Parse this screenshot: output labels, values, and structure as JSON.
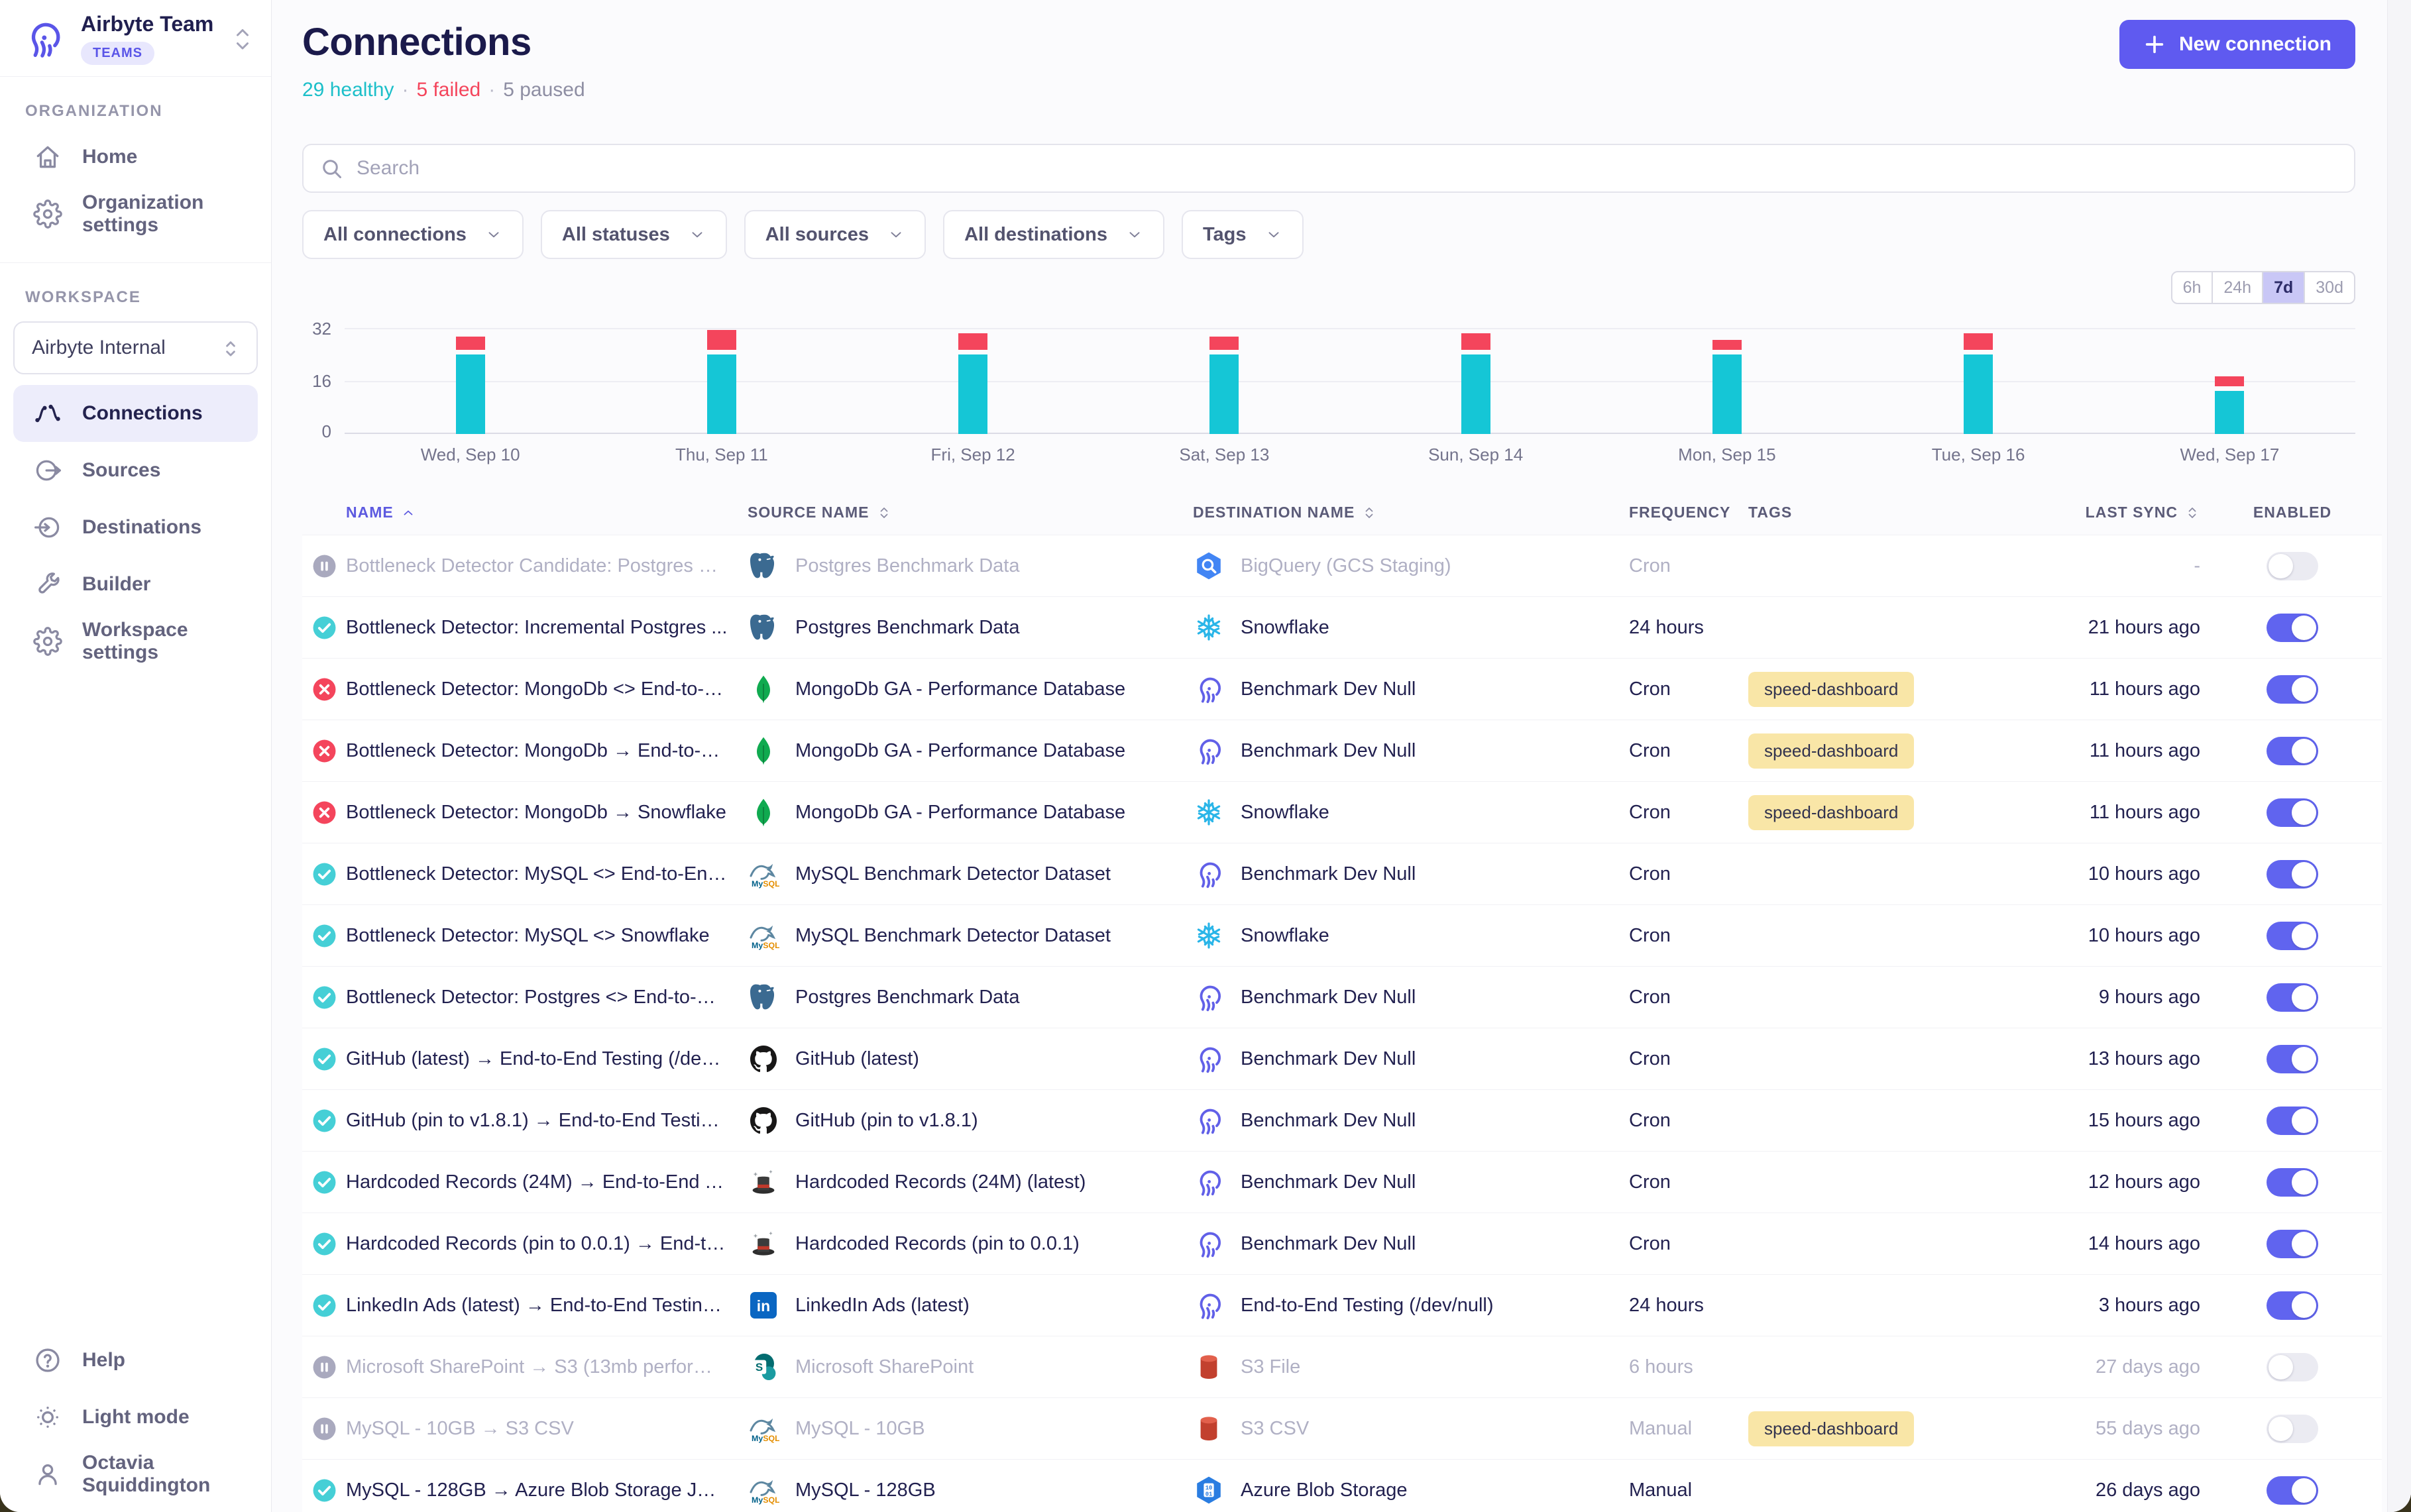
{
  "app": {
    "team_name": "Airbyte Team",
    "team_badge": "TEAMS"
  },
  "sidebar": {
    "org_section_label": "ORGANIZATION",
    "org_items": [
      {
        "label": "Home",
        "icon": "home-icon"
      },
      {
        "label": "Organization settings",
        "icon": "gear-icon"
      }
    ],
    "workspace_section_label": "WORKSPACE",
    "workspace_selector": "Airbyte Internal",
    "workspace_items": [
      {
        "label": "Connections",
        "icon": "connections-icon",
        "active": true
      },
      {
        "label": "Sources",
        "icon": "source-icon",
        "active": false
      },
      {
        "label": "Destinations",
        "icon": "destination-icon",
        "active": false
      },
      {
        "label": "Builder",
        "icon": "builder-icon",
        "active": false
      },
      {
        "label": "Workspace settings",
        "icon": "gear-icon",
        "active": false
      }
    ],
    "footer_items": [
      {
        "label": "Help",
        "icon": "help-icon"
      },
      {
        "label": "Light mode",
        "icon": "sun-icon"
      },
      {
        "label": "Octavia Squiddington",
        "icon": "user-icon"
      }
    ]
  },
  "header": {
    "title": "Connections",
    "healthy": "29 healthy",
    "failed": "5 failed",
    "paused": "5 paused",
    "separator": "·",
    "new_connection_label": "New connection"
  },
  "filters": {
    "search_placeholder": "Search",
    "dropdowns": [
      "All connections",
      "All statuses",
      "All sources",
      "All destinations",
      "Tags"
    ]
  },
  "chart_data": {
    "type": "bar",
    "stacked": true,
    "categories": [
      "Wed, Sep 10",
      "Thu, Sep 11",
      "Fri, Sep 12",
      "Sat, Sep 13",
      "Sun, Sep 14",
      "Mon, Sep 15",
      "Tue, Sep 16",
      "Wed, Sep 17"
    ],
    "series": [
      {
        "name": "succeeded",
        "color": "#15C6D6",
        "values": [
          24,
          24,
          24,
          24,
          24,
          24,
          24,
          13
        ]
      },
      {
        "name": "failed",
        "color": "#F4455C",
        "values": [
          4,
          6,
          5,
          4,
          5,
          3,
          5,
          3
        ]
      }
    ],
    "ylim": [
      0,
      32
    ],
    "yticks": [
      "0",
      "16",
      "32"
    ],
    "grid": true,
    "time_range_options": [
      "6h",
      "24h",
      "7d",
      "30d"
    ],
    "time_range_selected": "7d"
  },
  "colors": {
    "accent": "#5F5AF0",
    "healthy": "#1CBFC9",
    "failed": "#F4455C",
    "paused_gray": "#A9A9BE",
    "success_circle": "#45CFD6",
    "tag_bg": "#F9E6A7"
  },
  "table": {
    "columns": [
      {
        "label": "NAME",
        "sort": "asc"
      },
      {
        "label": "SOURCE NAME",
        "sort": "both"
      },
      {
        "label": "DESTINATION NAME",
        "sort": "both"
      },
      {
        "label": "FREQUENCY",
        "sort": null
      },
      {
        "label": "TAGS",
        "sort": null
      },
      {
        "label": "LAST SYNC",
        "sort": "both"
      },
      {
        "label": "ENABLED",
        "sort": null
      }
    ],
    "rows": [
      {
        "status": "paused",
        "name": "Bottleneck Detector Candidate: Postgres <> ...",
        "source_icon": "postgres",
        "source": "Postgres Benchmark Data",
        "dest_icon": "bigquery",
        "destination": "BigQuery (GCS Staging)",
        "frequency": "Cron",
        "tag": "",
        "last_sync": "-",
        "enabled": false
      },
      {
        "status": "success",
        "name": "Bottleneck Detector: Incremental Postgres ...",
        "source_icon": "postgres",
        "source": "Postgres Benchmark Data",
        "dest_icon": "snowflake",
        "destination": "Snowflake",
        "frequency": "24 hours",
        "tag": "",
        "last_sync": "21 hours ago",
        "enabled": true
      },
      {
        "status": "failed",
        "name": "Bottleneck Detector: MongoDb <> End-to-E...",
        "source_icon": "mongodb",
        "source": "MongoDb GA - Performance Database",
        "dest_icon": "airbyte",
        "destination": "Benchmark Dev Null",
        "frequency": "Cron",
        "tag": "speed-dashboard",
        "last_sync": "11 hours ago",
        "enabled": true
      },
      {
        "status": "failed",
        "name": "Bottleneck Detector: MongoDb → End-to-En...",
        "source_icon": "mongodb",
        "source": "MongoDb GA - Performance Database",
        "dest_icon": "airbyte",
        "destination": "Benchmark Dev Null",
        "frequency": "Cron",
        "tag": "speed-dashboard",
        "last_sync": "11 hours ago",
        "enabled": true
      },
      {
        "status": "failed",
        "name": "Bottleneck Detector: MongoDb → Snowflake",
        "source_icon": "mongodb",
        "source": "MongoDb GA - Performance Database",
        "dest_icon": "snowflake",
        "destination": "Snowflake",
        "frequency": "Cron",
        "tag": "speed-dashboard",
        "last_sync": "11 hours ago",
        "enabled": true
      },
      {
        "status": "success",
        "name": "Bottleneck Detector: MySQL <> End-to-End ...",
        "source_icon": "mysql",
        "source": "MySQL Benchmark Detector Dataset",
        "dest_icon": "airbyte",
        "destination": "Benchmark Dev Null",
        "frequency": "Cron",
        "tag": "",
        "last_sync": "10 hours ago",
        "enabled": true
      },
      {
        "status": "success",
        "name": "Bottleneck Detector: MySQL <> Snowflake",
        "source_icon": "mysql",
        "source": "MySQL Benchmark Detector Dataset",
        "dest_icon": "snowflake",
        "destination": "Snowflake",
        "frequency": "Cron",
        "tag": "",
        "last_sync": "10 hours ago",
        "enabled": true
      },
      {
        "status": "success",
        "name": "Bottleneck Detector: Postgres <> End-to-En...",
        "source_icon": "postgres",
        "source": "Postgres Benchmark Data",
        "dest_icon": "airbyte",
        "destination": "Benchmark Dev Null",
        "frequency": "Cron",
        "tag": "",
        "last_sync": "9 hours ago",
        "enabled": true
      },
      {
        "status": "success",
        "name": "GitHub (latest) → End-to-End Testing (/dev/...",
        "source_icon": "github",
        "source": "GitHub (latest)",
        "dest_icon": "airbyte",
        "destination": "Benchmark Dev Null",
        "frequency": "Cron",
        "tag": "",
        "last_sync": "13 hours ago",
        "enabled": true
      },
      {
        "status": "success",
        "name": "GitHub (pin to v1.8.1) → End-to-End Testing (...",
        "source_icon": "github",
        "source": "GitHub (pin to v1.8.1)",
        "dest_icon": "airbyte",
        "destination": "Benchmark Dev Null",
        "frequency": "Cron",
        "tag": "",
        "last_sync": "15 hours ago",
        "enabled": true
      },
      {
        "status": "success",
        "name": "Hardcoded Records (24M) → End-to-End Te...",
        "source_icon": "hardcoded",
        "source": "Hardcoded Records (24M) (latest)",
        "dest_icon": "airbyte",
        "destination": "Benchmark Dev Null",
        "frequency": "Cron",
        "tag": "",
        "last_sync": "12 hours ago",
        "enabled": true
      },
      {
        "status": "success",
        "name": "Hardcoded Records (pin to 0.0.1) → End-to-E...",
        "source_icon": "hardcoded",
        "source": "Hardcoded Records (pin to 0.0.1)",
        "dest_icon": "airbyte",
        "destination": "Benchmark Dev Null",
        "frequency": "Cron",
        "tag": "",
        "last_sync": "14 hours ago",
        "enabled": true
      },
      {
        "status": "success",
        "name": "LinkedIn Ads (latest) → End-to-End Testing (...",
        "source_icon": "linkedin",
        "source": "LinkedIn Ads (latest)",
        "dest_icon": "airbyte",
        "destination": "End-to-End Testing (/dev/null)",
        "frequency": "24 hours",
        "tag": "",
        "last_sync": "3 hours ago",
        "enabled": true
      },
      {
        "status": "paused",
        "name": "Microsoft SharePoint → S3 (13mb performan...",
        "source_icon": "sharepoint",
        "source": "Microsoft SharePoint",
        "dest_icon": "s3",
        "destination": "S3 File",
        "frequency": "6 hours",
        "tag": "",
        "last_sync": "27 days ago",
        "enabled": false
      },
      {
        "status": "paused",
        "name": "MySQL - 10GB → S3 CSV",
        "source_icon": "mysql",
        "source": "MySQL - 10GB",
        "dest_icon": "s3",
        "destination": "S3 CSV",
        "frequency": "Manual",
        "tag": "speed-dashboard",
        "last_sync": "55 days ago",
        "enabled": false
      },
      {
        "status": "success",
        "name": "MySQL - 128GB → Azure Blob Storage JSOn ...",
        "source_icon": "mysql",
        "source": "MySQL - 128GB",
        "dest_icon": "azureblob",
        "destination": "Azure Blob Storage",
        "frequency": "Manual",
        "tag": "",
        "last_sync": "26 days ago",
        "enabled": true
      }
    ]
  }
}
